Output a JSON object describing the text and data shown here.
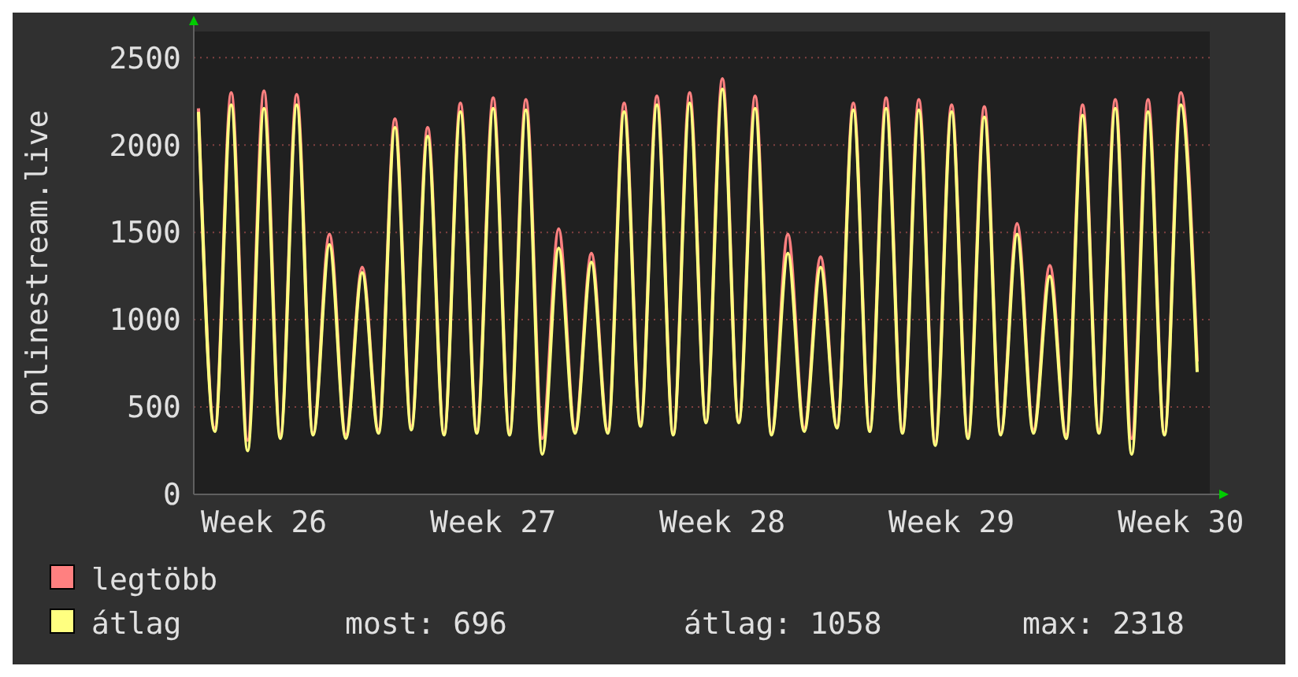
{
  "chart_data": {
    "type": "line",
    "ylabel": "onlinestream.live",
    "categories": [
      null,
      null,
      null,
      null,
      "Week 26",
      null,
      null,
      null,
      null,
      null,
      null,
      null,
      null,
      null,
      null,
      null,
      null,
      null,
      "Week 27",
      null,
      null,
      null,
      null,
      null,
      null,
      null,
      null,
      null,
      null,
      null,
      null,
      null,
      "Week 28",
      null,
      null,
      null,
      null,
      null,
      null,
      null,
      null,
      null,
      null,
      null,
      null,
      null,
      "Week 29",
      null,
      null,
      null,
      null,
      null,
      null,
      null,
      null,
      null,
      null,
      null,
      null,
      null,
      "Week 30",
      null
    ],
    "series": [
      {
        "name": "legtöbb",
        "color": "#ff8080",
        "values": [
          2210,
          380,
          2300,
          310,
          2310,
          340,
          2290,
          350,
          1490,
          340,
          1300,
          370,
          2150,
          390,
          2100,
          350,
          2240,
          370,
          2270,
          360,
          2260,
          320,
          1520,
          370,
          1380,
          370,
          2240,
          410,
          2280,
          350,
          2300,
          420,
          2380,
          420,
          2280,
          350,
          1490,
          380,
          1360,
          390,
          2240,
          380,
          2270,
          370,
          2260,
          300,
          2230,
          340,
          2220,
          350,
          1550,
          370,
          1310,
          340,
          2230,
          370,
          2260,
          320,
          2260,
          350,
          2300,
          760
        ]
      },
      {
        "name": "átlag",
        "color": "#ffff80",
        "values": [
          2190,
          360,
          2230,
          250,
          2210,
          320,
          2230,
          340,
          1430,
          320,
          1270,
          350,
          2100,
          370,
          2050,
          340,
          2190,
          350,
          2210,
          340,
          2200,
          230,
          1410,
          350,
          1330,
          350,
          2190,
          390,
          2230,
          340,
          2240,
          410,
          2320,
          410,
          2210,
          340,
          1380,
          360,
          1300,
          380,
          2200,
          360,
          2210,
          350,
          2200,
          280,
          2190,
          320,
          2160,
          340,
          1490,
          350,
          1250,
          320,
          2170,
          350,
          2210,
          230,
          2190,
          340,
          2230,
          700
        ]
      }
    ],
    "ylim": [
      0,
      2650
    ],
    "yticks": [
      0,
      500,
      1000,
      1500,
      2000,
      2500
    ],
    "grid": "y",
    "legend": "bottom",
    "marker": "none",
    "line_style": "solid",
    "annotations": [
      "most: 696",
      "átlag: 1058",
      "max: 2318"
    ]
  }
}
